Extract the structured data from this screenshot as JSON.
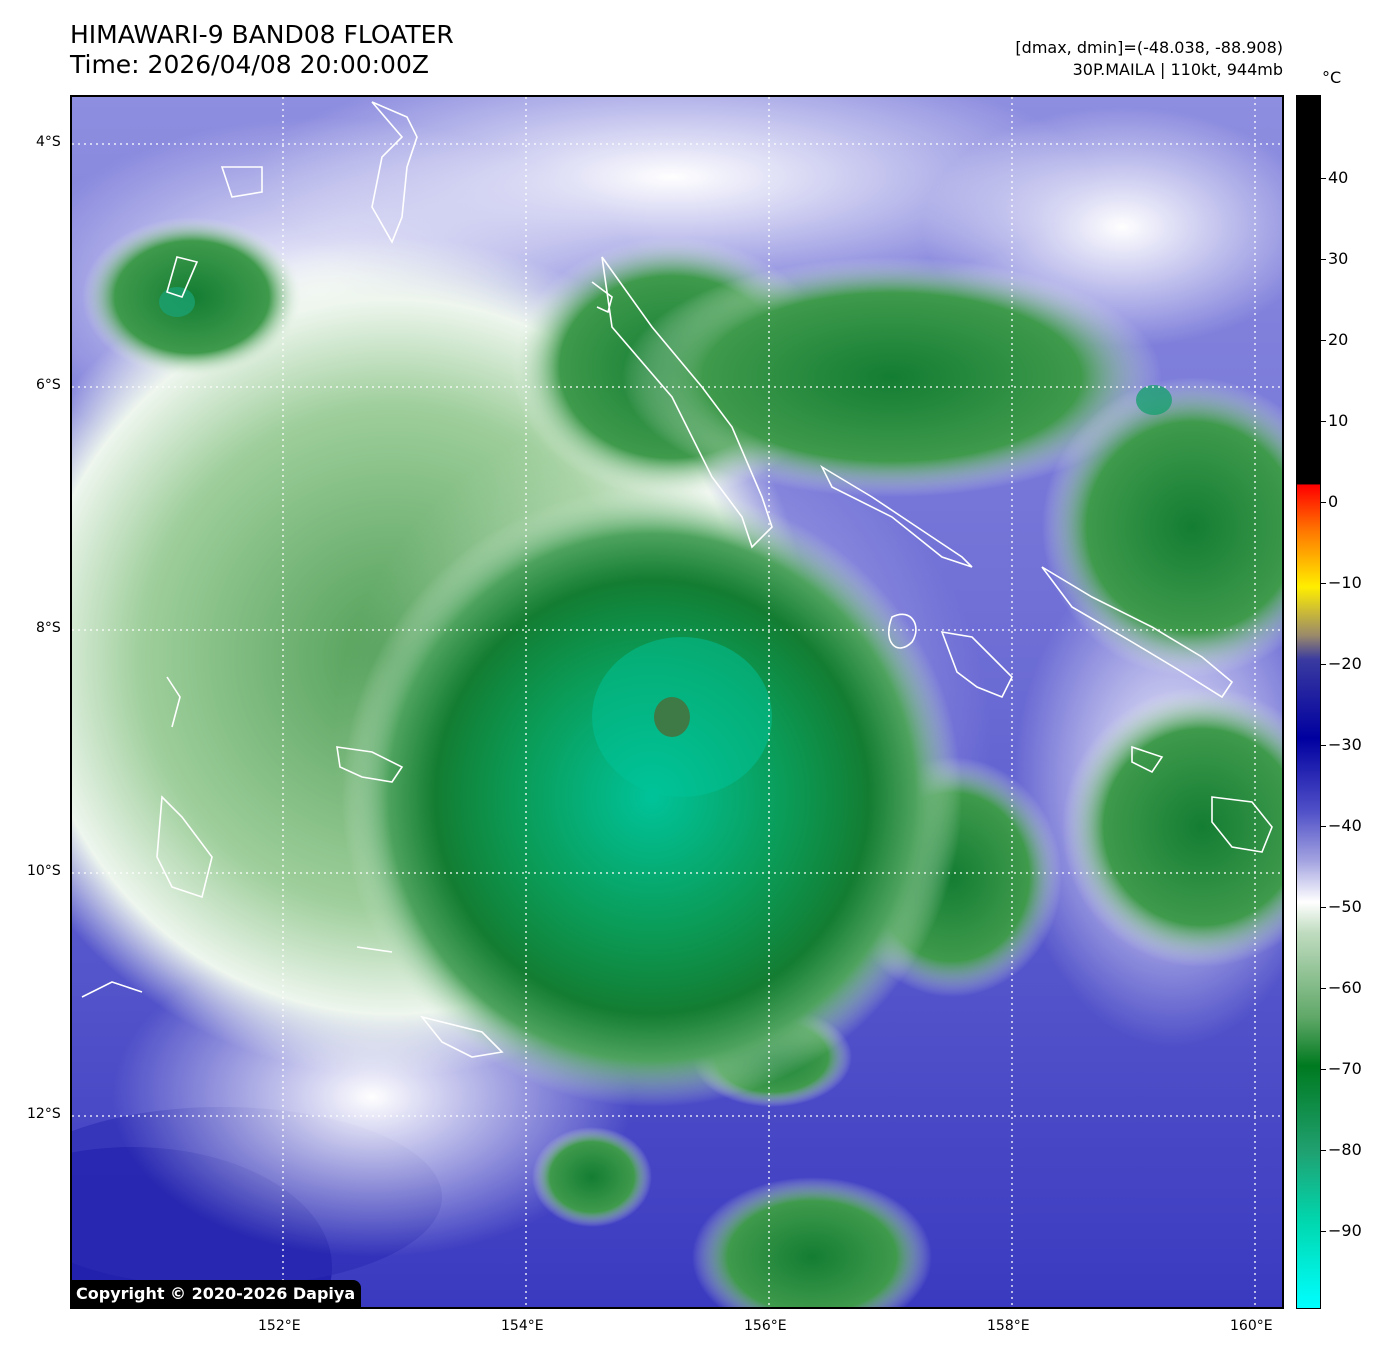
{
  "header": {
    "title_line1": "HIMAWARI-9 BAND08 FLOATER",
    "title_line2": "Time: 2026/04/08 20:00:00Z",
    "range_text": "[dmax, dmin]=(-48.038, -88.908)",
    "storm_text": "30P.MAILA | 110kt, 944mb"
  },
  "map": {
    "lat_labels": [
      "4°S",
      "6°S",
      "8°S",
      "10°S",
      "12°S"
    ],
    "lon_labels": [
      "152°E",
      "154°E",
      "156°E",
      "158°E",
      "160°E"
    ],
    "storm_name": "MAILA"
  },
  "colorbar": {
    "unit": "°C",
    "labels": [
      "40",
      "30",
      "20",
      "10",
      "0",
      "−10",
      "−20",
      "−30",
      "−40",
      "−50",
      "−60",
      "−70",
      "−80",
      "−90"
    ]
  },
  "copyright": "Copyright © 2020-2026 Dapiya",
  "colors": {
    "cold_cyan": "#00c8a0",
    "deep_green": "#0a7a2a",
    "white": "#f4f6ff",
    "blue_purple": "#5a5ad0",
    "navy": "#1a1aa0"
  }
}
